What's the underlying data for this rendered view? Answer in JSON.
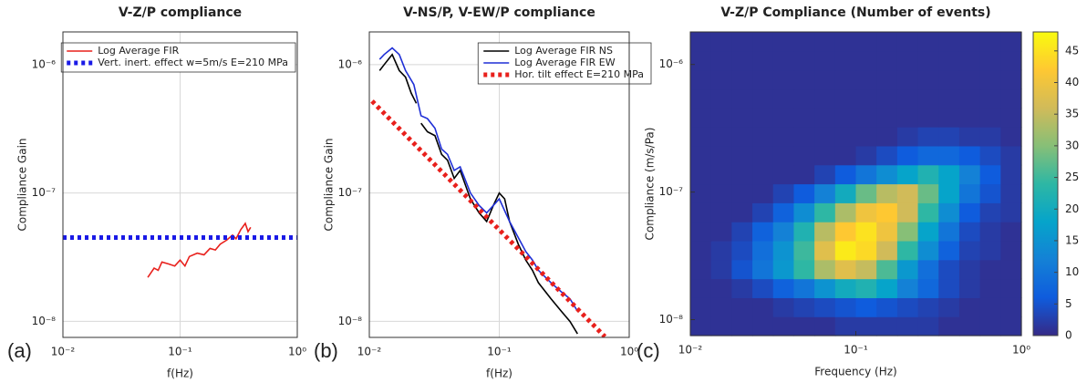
{
  "chart_data": [
    {
      "type": "line",
      "panel_label": "(a)",
      "title": "V-Z/P compliance",
      "xlabel": "f(Hz)",
      "ylabel": "Compliance Gain",
      "xscale": "log",
      "yscale": "log",
      "grid": true,
      "legend": "upper right",
      "xlim": [
        0.01,
        1
      ],
      "ylim": [
        7.5e-09,
        1.8e-06
      ],
      "xticks": [
        {
          "value": 0.01,
          "label": "10⁻²"
        },
        {
          "value": 0.1,
          "label": "10⁻¹"
        },
        {
          "value": 1,
          "label": "10⁰"
        }
      ],
      "yticks": [
        {
          "value": 1e-08,
          "label": "10⁻⁸"
        },
        {
          "value": 1e-07,
          "label": "10⁻⁷"
        },
        {
          "value": 1e-06,
          "label": "10⁻⁶"
        }
      ],
      "series": [
        {
          "name": "Log Average FIR",
          "color": "#e8201c",
          "style": "solid",
          "x": [
            0.053,
            0.06,
            0.065,
            0.07,
            0.08,
            0.09,
            0.1,
            0.11,
            0.12,
            0.14,
            0.16,
            0.18,
            0.2,
            0.22,
            0.25,
            0.28,
            0.3,
            0.33,
            0.36,
            0.38,
            0.4
          ],
          "values": [
            2.2e-08,
            2.6e-08,
            2.5e-08,
            2.9e-08,
            2.8e-08,
            2.7e-08,
            3e-08,
            2.7e-08,
            3.2e-08,
            3.4e-08,
            3.3e-08,
            3.7e-08,
            3.6e-08,
            4e-08,
            4.3e-08,
            4.7e-08,
            4.4e-08,
            5.2e-08,
            5.8e-08,
            5e-08,
            5.4e-08
          ]
        },
        {
          "name": "Vert. inert. effect w=5m/s E=210 MPa",
          "color": "#1a1ae6",
          "style": "dotted",
          "x": [
            0.01,
            1
          ],
          "values": [
            4.5e-08,
            4.5e-08
          ]
        }
      ]
    },
    {
      "type": "line",
      "panel_label": "(b)",
      "title": "V-NS/P, V-EW/P compliance",
      "xlabel": "f(Hz)",
      "ylabel": "Compliance Gain",
      "xscale": "log",
      "yscale": "log",
      "grid": true,
      "legend": "upper right",
      "xlim": [
        0.01,
        1
      ],
      "ylim": [
        7.5e-09,
        1.8e-06
      ],
      "xticks": [
        {
          "value": 0.01,
          "label": "10⁻²"
        },
        {
          "value": 0.1,
          "label": "10⁻¹"
        },
        {
          "value": 1,
          "label": "10⁰"
        }
      ],
      "yticks": [
        {
          "value": 1e-08,
          "label": "10⁻⁸"
        },
        {
          "value": 1e-07,
          "label": "10⁻⁷"
        },
        {
          "value": 1e-06,
          "label": "10⁻⁶"
        }
      ],
      "series": [
        {
          "name": "Log Average FIR NS",
          "color": "#000000",
          "style": "solid",
          "x": [
            0.012,
            0.013,
            0.015,
            0.017,
            0.019,
            0.021,
            0.023,
            0.024,
            0.025,
            0.028,
            0.032,
            0.036,
            0.04,
            0.045,
            0.05,
            0.06,
            0.07,
            0.08,
            0.09,
            0.1,
            0.11,
            0.12,
            0.14,
            0.16,
            0.18,
            0.2,
            0.25,
            0.3,
            0.35,
            0.4
          ],
          "values": [
            9e-07,
            1e-06,
            1.2e-06,
            9e-07,
            8e-07,
            6e-07,
            5e-07,
            null,
            3.5e-07,
            3e-07,
            2.8e-07,
            2e-07,
            1.8e-07,
            1.3e-07,
            1.5e-07,
            9e-08,
            7e-08,
            6e-08,
            8e-08,
            1e-07,
            9e-08,
            6e-08,
            4e-08,
            3e-08,
            2.5e-08,
            2e-08,
            1.5e-08,
            1.2e-08,
            1e-08,
            8e-09
          ]
        },
        {
          "name": "Log Average FIR EW",
          "color": "#1f2fd6",
          "style": "solid",
          "x": [
            0.012,
            0.013,
            0.015,
            0.017,
            0.019,
            0.022,
            0.025,
            0.028,
            0.032,
            0.036,
            0.04,
            0.045,
            0.05,
            0.06,
            0.07,
            0.08,
            0.09,
            0.1,
            0.12,
            0.14,
            0.16,
            0.18,
            0.2,
            0.25,
            0.3,
            0.35,
            0.4
          ],
          "values": [
            1.1e-06,
            1.2e-06,
            1.35e-06,
            1.2e-06,
            9e-07,
            7e-07,
            4e-07,
            3.8e-07,
            3.2e-07,
            2.2e-07,
            2e-07,
            1.5e-07,
            1.6e-07,
            1e-07,
            8e-08,
            7e-08,
            8e-08,
            9e-08,
            6e-08,
            4.5e-08,
            3.5e-08,
            3e-08,
            2.5e-08,
            2e-08,
            1.7e-08,
            1.5e-08,
            1.2e-08
          ]
        },
        {
          "name": "Hor. tilt effect E=210 MPa",
          "color": "#e8201c",
          "style": "dotted",
          "x": [
            0.0105,
            0.65
          ],
          "values": [
            5.2e-07,
            7.6e-09
          ]
        }
      ]
    },
    {
      "type": "heatmap",
      "panel_label": "(c)",
      "title": "V-Z/P Compliance (Number of events)",
      "xlabel": "Frequency (Hz)",
      "ylabel": "Compliance (m/s/Pa)",
      "xscale": "log",
      "yscale": "log",
      "grid": false,
      "xlim": [
        0.01,
        1
      ],
      "ylim": [
        7.5e-09,
        1.8e-06
      ],
      "xticks": [
        {
          "value": 0.01,
          "label": "10⁻²"
        },
        {
          "value": 0.1,
          "label": "10⁻¹"
        },
        {
          "value": 1,
          "label": "10⁰"
        }
      ],
      "yticks": [
        {
          "value": 1e-08,
          "label": "10⁻⁸"
        },
        {
          "value": 1e-07,
          "label": "10⁻⁷"
        },
        {
          "value": 1e-06,
          "label": "10⁻⁶"
        }
      ],
      "colormap": [
        "#352a87",
        "#0f5cdd",
        "#1481d6",
        "#06a4ca",
        "#2eb7a4",
        "#87bf77",
        "#d1bb59",
        "#fec832",
        "#f9fb0e"
      ],
      "clim": [
        0,
        48
      ],
      "cticks": [
        0,
        5,
        10,
        15,
        20,
        25,
        30,
        35,
        40,
        45
      ],
      "z": [
        [
          1,
          1,
          1,
          1,
          1,
          1,
          1,
          2,
          2,
          2,
          2,
          2,
          1,
          1,
          1,
          1
        ],
        [
          1,
          1,
          1,
          1,
          2,
          3,
          4,
          5,
          6,
          5,
          4,
          3,
          2,
          1,
          1,
          1
        ],
        [
          1,
          1,
          2,
          4,
          7,
          10,
          15,
          20,
          22,
          18,
          12,
          8,
          4,
          2,
          1,
          1
        ],
        [
          1,
          2,
          5,
          10,
          16,
          24,
          33,
          38,
          35,
          26,
          16,
          9,
          4,
          2,
          1,
          1
        ],
        [
          1,
          2,
          4,
          9,
          15,
          25,
          38,
          46,
          44,
          36,
          24,
          14,
          7,
          3,
          2,
          1
        ],
        [
          1,
          1,
          3,
          7,
          12,
          22,
          34,
          42,
          45,
          40,
          30,
          18,
          10,
          4,
          2,
          1
        ],
        [
          1,
          1,
          1,
          3,
          7,
          14,
          24,
          33,
          40,
          42,
          36,
          24,
          14,
          6,
          3,
          2
        ],
        [
          1,
          1,
          1,
          1,
          3,
          6,
          12,
          20,
          28,
          34,
          36,
          28,
          18,
          10,
          5,
          2
        ],
        [
          1,
          1,
          1,
          1,
          1,
          1,
          3,
          6,
          10,
          14,
          18,
          22,
          18,
          12,
          6,
          2
        ],
        [
          1,
          1,
          1,
          1,
          1,
          1,
          1,
          1,
          2,
          4,
          6,
          8,
          8,
          6,
          4,
          2
        ],
        [
          1,
          1,
          1,
          1,
          1,
          1,
          1,
          1,
          1,
          1,
          2,
          3,
          3,
          2,
          2,
          1
        ],
        [
          1,
          1,
          1,
          1,
          1,
          1,
          1,
          1,
          1,
          1,
          1,
          1,
          1,
          1,
          1,
          1
        ],
        [
          1,
          1,
          1,
          1,
          1,
          1,
          1,
          1,
          1,
          1,
          1,
          1,
          1,
          1,
          1,
          1
        ],
        [
          1,
          1,
          1,
          1,
          1,
          1,
          1,
          1,
          1,
          1,
          1,
          1,
          1,
          1,
          1,
          1
        ],
        [
          1,
          1,
          1,
          1,
          1,
          1,
          1,
          1,
          1,
          1,
          1,
          1,
          1,
          1,
          1,
          1
        ],
        [
          1,
          1,
          1,
          1,
          1,
          1,
          1,
          1,
          1,
          1,
          1,
          1,
          1,
          1,
          1,
          1
        ]
      ]
    }
  ]
}
